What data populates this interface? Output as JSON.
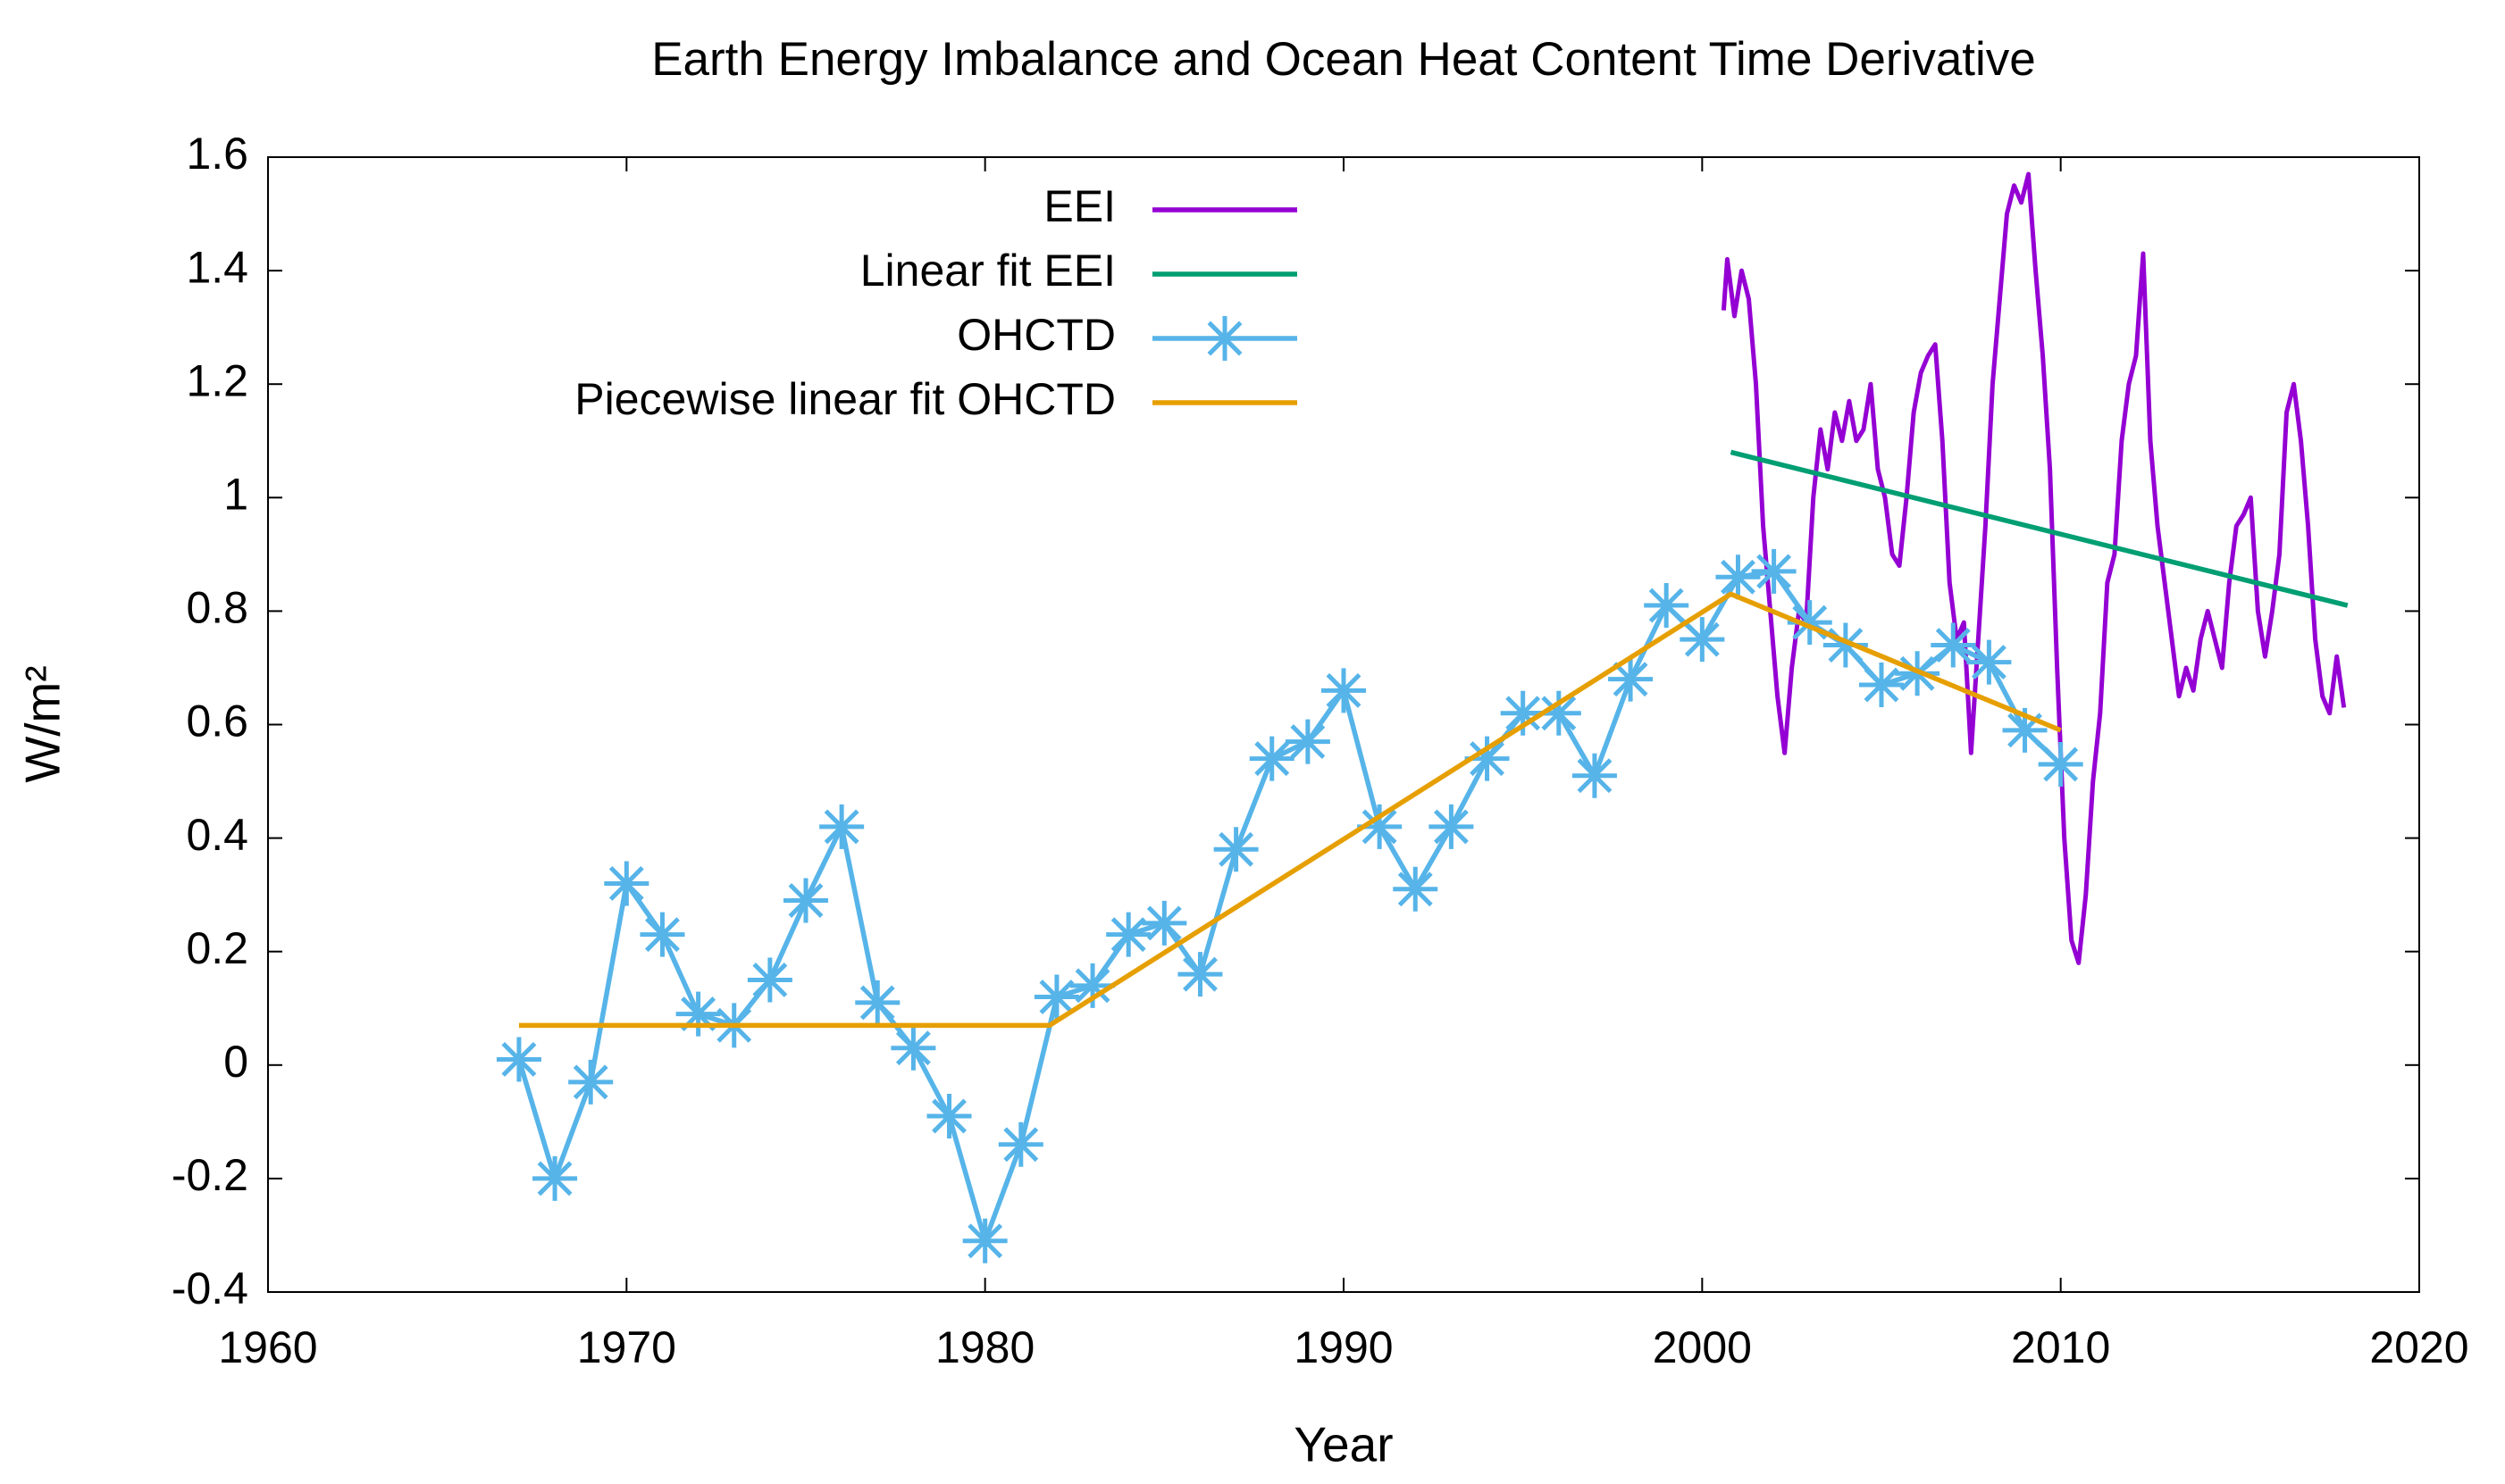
{
  "chart_data": {
    "type": "line",
    "title": "Earth Energy Imbalance and Ocean Heat Content Time Derivative",
    "xlabel": "Year",
    "ylabel": "W/m²",
    "xlim": [
      1960,
      2020
    ],
    "xticks": [
      1960,
      1970,
      1980,
      1990,
      2000,
      2010,
      2020
    ],
    "ylim": [
      -0.4,
      1.6
    ],
    "yticks": [
      -0.4,
      -0.2,
      0,
      0.2,
      0.4,
      0.6,
      0.8,
      1,
      1.2,
      1.4,
      1.6
    ],
    "legend": "top left",
    "series": [
      {
        "name": "EEI",
        "color": "#9400d3",
        "x": [
          2000.6,
          2000.7,
          2000.9,
          2001.1,
          2001.3,
          2001.5,
          2001.7,
          2001.9,
          2002.1,
          2002.3,
          2002.5,
          2002.7,
          2002.9,
          2003.1,
          2003.3,
          2003.5,
          2003.7,
          2003.9,
          2004.1,
          2004.3,
          2004.5,
          2004.7,
          2004.9,
          2005.1,
          2005.3,
          2005.5,
          2005.7,
          2005.9,
          2006.1,
          2006.3,
          2006.5,
          2006.7,
          2006.9,
          2007.1,
          2007.3,
          2007.5,
          2007.7,
          2007.9,
          2008.1,
          2008.3,
          2008.5,
          2008.7,
          2008.9,
          2009.1,
          2009.3,
          2009.5,
          2009.7,
          2009.9,
          2010.1,
          2010.3,
          2010.5,
          2010.7,
          2010.9,
          2011.1,
          2011.3,
          2011.5,
          2011.7,
          2011.9,
          2012.1,
          2012.3,
          2012.5,
          2012.7,
          2012.9,
          2013.1,
          2013.3,
          2013.5,
          2013.7,
          2013.9,
          2014.1,
          2014.3,
          2014.5,
          2014.7,
          2014.9,
          2015.1,
          2015.3,
          2015.5,
          2015.7,
          2015.9,
          2016.1,
          2016.3,
          2016.5,
          2016.7,
          2016.9,
          2017.1,
          2017.3,
          2017.5,
          2017.7,
          2017.9
        ],
        "values": [
          1.33,
          1.42,
          1.32,
          1.4,
          1.35,
          1.2,
          0.95,
          0.8,
          0.65,
          0.55,
          0.7,
          0.8,
          0.78,
          1.0,
          1.12,
          1.05,
          1.15,
          1.1,
          1.17,
          1.1,
          1.12,
          1.2,
          1.05,
          1.0,
          0.9,
          0.88,
          1.0,
          1.15,
          1.22,
          1.25,
          1.27,
          1.1,
          0.85,
          0.75,
          0.78,
          0.55,
          0.75,
          0.95,
          1.2,
          1.35,
          1.5,
          1.55,
          1.52,
          1.57,
          1.4,
          1.25,
          1.05,
          0.7,
          0.4,
          0.22,
          0.18,
          0.3,
          0.5,
          0.62,
          0.85,
          0.9,
          1.1,
          1.2,
          1.25,
          1.43,
          1.1,
          0.95,
          0.85,
          0.75,
          0.65,
          0.7,
          0.66,
          0.75,
          0.8,
          0.75,
          0.7,
          0.85,
          0.95,
          0.97,
          1.0,
          0.8,
          0.72,
          0.8,
          0.9,
          1.15,
          1.2,
          1.1,
          0.95,
          0.75,
          0.65,
          0.62,
          0.72,
          0.63
        ]
      },
      {
        "name": "Linear fit EEI",
        "color": "#009e73",
        "x": [
          2000.8,
          2018
        ],
        "values": [
          1.08,
          0.81
        ]
      },
      {
        "name": "OHCTD",
        "color": "#56b4e9",
        "marker": "asterisk",
        "x": [
          1967,
          1968,
          1969,
          1970,
          1971,
          1972,
          1973,
          1974,
          1975,
          1976,
          1977,
          1978,
          1979,
          1980,
          1981,
          1982,
          1983,
          1984,
          1985,
          1986,
          1987,
          1988,
          1989,
          1990,
          1991,
          1992,
          1993,
          1994,
          1995,
          1996,
          1997,
          1998,
          1999,
          2000,
          2001,
          2002,
          2003,
          2004,
          2005,
          2006,
          2007,
          2008,
          2009,
          2010
        ],
        "values": [
          0.01,
          -0.2,
          -0.03,
          0.32,
          0.23,
          0.09,
          0.07,
          0.15,
          0.29,
          0.42,
          0.11,
          0.03,
          -0.09,
          -0.31,
          -0.14,
          0.12,
          0.14,
          0.23,
          0.25,
          0.16,
          0.38,
          0.54,
          0.57,
          0.66,
          0.42,
          0.31,
          0.42,
          0.54,
          0.62,
          0.62,
          0.51,
          0.68,
          0.81,
          0.75,
          0.86,
          0.87,
          0.78,
          0.74,
          0.67,
          0.69,
          0.74,
          0.71,
          0.59,
          0.53
        ]
      },
      {
        "name": "Piecewise linear fit OHCTD",
        "color": "#e69f00",
        "x": [
          1967,
          1981.8,
          2000.8,
          2010
        ],
        "values": [
          0.07,
          0.07,
          0.83,
          0.59
        ]
      }
    ]
  }
}
